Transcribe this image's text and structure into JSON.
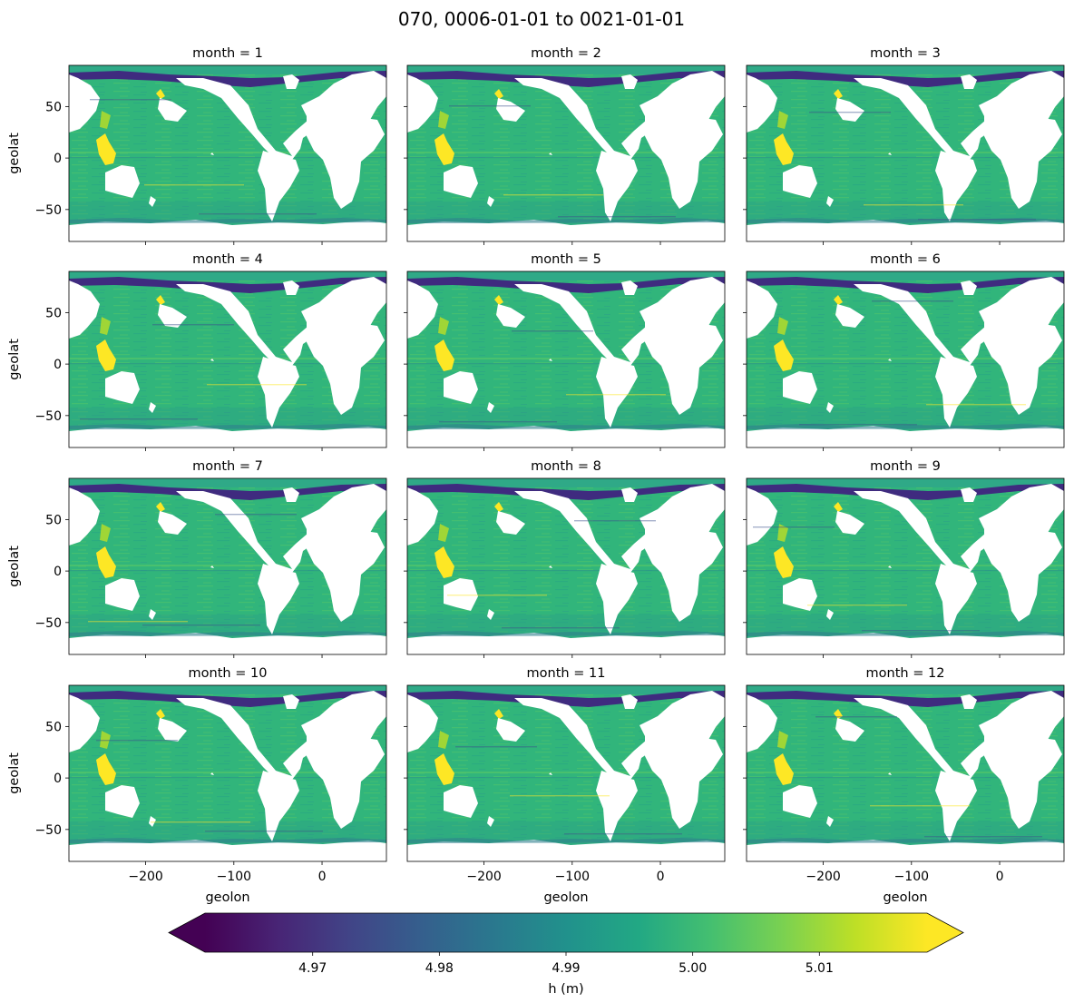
{
  "chart_data": {
    "type": "heatmap",
    "title": "070, 0006-01-01 to 0021-01-01",
    "variable": "h",
    "panels": [
      {
        "title": "month = 1",
        "month": 1
      },
      {
        "title": "month = 2",
        "month": 2
      },
      {
        "title": "month = 3",
        "month": 3
      },
      {
        "title": "month = 4",
        "month": 4
      },
      {
        "title": "month = 5",
        "month": 5
      },
      {
        "title": "month = 6",
        "month": 6
      },
      {
        "title": "month = 7",
        "month": 7
      },
      {
        "title": "month = 8",
        "month": 8
      },
      {
        "title": "month = 9",
        "month": 9
      },
      {
        "title": "month = 10",
        "month": 10
      },
      {
        "title": "month = 11",
        "month": 11
      },
      {
        "title": "month = 12",
        "month": 12
      }
    ],
    "grid": {
      "rows": 4,
      "cols": 3,
      "sharex": true,
      "sharey": true
    },
    "xlabel": "geolon",
    "ylabel": "geolat",
    "xlim": [
      -287,
      73
    ],
    "ylim": [
      -81,
      90
    ],
    "xticks": [
      -200,
      -100,
      0
    ],
    "xtick_labels": [
      "−200",
      "−100",
      "0"
    ],
    "yticks": [
      50,
      0,
      -50
    ],
    "ytick_labels": [
      "50",
      "0",
      "−50"
    ],
    "colorbar": {
      "label": "h (m)",
      "vmin": 4.9615,
      "vmax": 5.0185,
      "extend": "both",
      "colormap": "viridis",
      "ticks": [
        4.97,
        4.98,
        4.99,
        5.0,
        5.01
      ],
      "tick_labels": [
        "4.97",
        "4.98",
        "4.99",
        "5.00",
        "5.01"
      ]
    },
    "typical_value": 4.995,
    "land_color": "#ffffff"
  }
}
